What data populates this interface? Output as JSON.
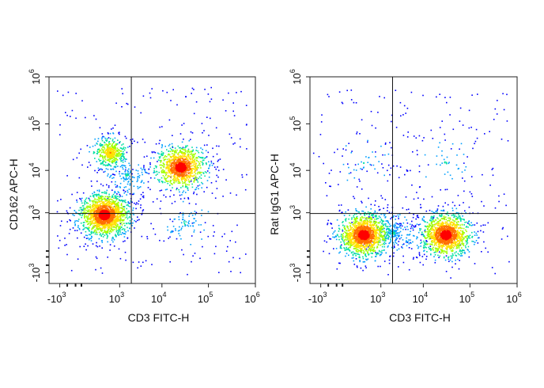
{
  "chart_data": [
    {
      "type": "scatter",
      "subtype": "flow-cytometry-density-plot",
      "xlabel": "CD3 FITC-H",
      "ylabel": "CD162 APC-H",
      "scale": "biexponential",
      "x_ticks": [
        {
          "value": -1000,
          "base": "-10",
          "exp": "3"
        },
        {
          "value": 1000,
          "base": "10",
          "exp": "3"
        },
        {
          "value": 10000,
          "base": "10",
          "exp": "4"
        },
        {
          "value": 100000,
          "base": "10",
          "exp": "5"
        },
        {
          "value": 1000000,
          "base": "10",
          "exp": "6"
        }
      ],
      "y_ticks": [
        {
          "value": -1000,
          "base": "-10",
          "exp": "3"
        },
        {
          "value": 1000,
          "base": "10",
          "exp": "3"
        },
        {
          "value": 10000,
          "base": "10",
          "exp": "4"
        },
        {
          "value": 100000,
          "base": "10",
          "exp": "5"
        },
        {
          "value": 1000000,
          "base": "10",
          "exp": "6"
        }
      ],
      "quadrant_gate": {
        "x": 2000,
        "y": 950
      },
      "populations": [
        {
          "x": 300,
          "y": 900,
          "count": 2200
        },
        {
          "x": 25000,
          "y": 12000,
          "count": 1300
        },
        {
          "x": 500,
          "y": 25000,
          "count": 500
        },
        {
          "x": 1500,
          "y": 8000,
          "count": 150
        },
        {
          "x": 30000,
          "y": 500,
          "count": 80
        }
      ],
      "colormap": [
        "#0000ff",
        "#00a0ff",
        "#00e0a0",
        "#a0ff00",
        "#ffe000",
        "#ff7000",
        "#ff0000"
      ]
    },
    {
      "type": "scatter",
      "subtype": "flow-cytometry-density-plot",
      "xlabel": "CD3 FITC-H",
      "ylabel": "Rat IgG1 APC-H",
      "scale": "biexponential",
      "x_ticks": [
        {
          "value": -1000,
          "base": "-10",
          "exp": "3"
        },
        {
          "value": 1000,
          "base": "10",
          "exp": "3"
        },
        {
          "value": 10000,
          "base": "10",
          "exp": "4"
        },
        {
          "value": 100000,
          "base": "10",
          "exp": "5"
        },
        {
          "value": 1000000,
          "base": "10",
          "exp": "6"
        }
      ],
      "y_ticks": [
        {
          "value": -1000,
          "base": "-10",
          "exp": "3"
        },
        {
          "value": 1000,
          "base": "10",
          "exp": "3"
        },
        {
          "value": 10000,
          "base": "10",
          "exp": "4"
        },
        {
          "value": 100000,
          "base": "10",
          "exp": "5"
        },
        {
          "value": 1000000,
          "base": "10",
          "exp": "6"
        }
      ],
      "quadrant_gate": {
        "x": 2000,
        "y": 950
      },
      "populations": [
        {
          "x": 250,
          "y": 150,
          "count": 1900
        },
        {
          "x": 30000,
          "y": 150,
          "count": 1700
        },
        {
          "x": 2000,
          "y": 200,
          "count": 200
        },
        {
          "x": 250,
          "y": 15000,
          "count": 40
        },
        {
          "x": 30000,
          "y": 15000,
          "count": 40
        }
      ],
      "colormap": [
        "#0000ff",
        "#00a0ff",
        "#00e0a0",
        "#a0ff00",
        "#ffe000",
        "#ff7000",
        "#ff0000"
      ]
    }
  ]
}
